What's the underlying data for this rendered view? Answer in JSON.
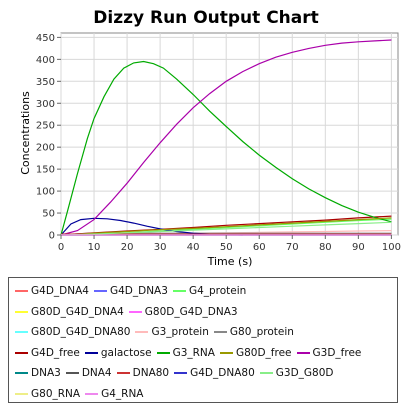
{
  "chart_data": {
    "type": "line",
    "title": "Dizzy Run Output Chart",
    "xlabel": "Time (s)",
    "ylabel": "Concentrations",
    "xlim": [
      0,
      102
    ],
    "ylim": [
      0,
      460
    ],
    "xticks": [
      "0",
      "10",
      "20",
      "30",
      "40",
      "50",
      "60",
      "70",
      "80",
      "90",
      "100"
    ],
    "yticks": [
      "0",
      "50",
      "100",
      "150",
      "200",
      "250",
      "300",
      "350",
      "400",
      "450"
    ],
    "grid": true,
    "legend_position": "bottom",
    "legend_rows": [
      [
        0,
        1,
        2
      ],
      [
        3,
        4
      ],
      [
        5,
        6,
        7
      ],
      [
        8,
        9,
        10,
        11,
        12
      ],
      [
        13,
        14,
        15,
        16,
        17
      ],
      [
        18,
        19
      ]
    ],
    "series": [
      {
        "name": "G4D_DNA4",
        "color": "#ff6666",
        "x": [
          0,
          100
        ],
        "y": [
          0,
          0
        ]
      },
      {
        "name": "G4D_DNA3",
        "color": "#6666ff",
        "x": [
          0,
          100
        ],
        "y": [
          0,
          0
        ]
      },
      {
        "name": "G4_protein",
        "color": "#66ff66",
        "x": [
          0,
          5,
          10,
          20,
          30,
          40,
          50,
          60,
          70,
          80,
          90,
          100
        ],
        "y": [
          0,
          1,
          2,
          5,
          9,
          13,
          17,
          21,
          25,
          29,
          33,
          36
        ]
      },
      {
        "name": "G80D_G4D_DNA4",
        "color": "#ffff33",
        "x": [
          0,
          100
        ],
        "y": [
          0,
          0
        ]
      },
      {
        "name": "G80D_G4D_DNA3",
        "color": "#ff66ff",
        "x": [
          0,
          100
        ],
        "y": [
          0,
          0
        ]
      },
      {
        "name": "G80D_G4D_DNA80",
        "color": "#66ffff",
        "x": [
          0,
          100
        ],
        "y": [
          0,
          0
        ]
      },
      {
        "name": "G3_protein",
        "color": "#ffbbbb",
        "x": [
          0,
          10,
          20,
          30,
          40,
          50,
          60,
          70,
          80,
          90,
          100
        ],
        "y": [
          0,
          1,
          2,
          3,
          4,
          5,
          6,
          7,
          8,
          9,
          10
        ]
      },
      {
        "name": "G80_protein",
        "color": "#888888",
        "x": [
          0,
          5,
          10,
          20,
          50,
          100
        ],
        "y": [
          0,
          3,
          4,
          4,
          4,
          4
        ]
      },
      {
        "name": "G4D_free",
        "color": "#aa0000",
        "x": [
          0,
          10,
          20,
          30,
          40,
          50,
          60,
          70,
          80,
          90,
          100
        ],
        "y": [
          0,
          5,
          9,
          13,
          17,
          22,
          26,
          30,
          34,
          39,
          43
        ]
      },
      {
        "name": "galactose",
        "color": "#000099",
        "x": [
          0,
          3,
          6,
          10,
          14,
          18,
          22,
          26,
          30,
          35,
          40,
          45,
          50,
          55
        ],
        "y": [
          0,
          25,
          35,
          38,
          37,
          33,
          27,
          20,
          14,
          8,
          4,
          2,
          1,
          0
        ]
      },
      {
        "name": "G3_RNA",
        "color": "#00aa00",
        "x": [
          0,
          2,
          5,
          8,
          10,
          13,
          16,
          19,
          22,
          25,
          28,
          31,
          35,
          40,
          45,
          50,
          55,
          60,
          65,
          70,
          75,
          80,
          85,
          90,
          95,
          100
        ],
        "y": [
          0,
          55,
          140,
          220,
          265,
          315,
          355,
          380,
          392,
          395,
          390,
          380,
          355,
          320,
          282,
          247,
          213,
          182,
          154,
          128,
          105,
          85,
          67,
          52,
          40,
          30
        ]
      },
      {
        "name": "G80D_free",
        "color": "#999900",
        "x": [
          0,
          10,
          20,
          30,
          40,
          50,
          60,
          70,
          80,
          90,
          100
        ],
        "y": [
          0,
          4,
          8,
          12,
          15,
          19,
          23,
          27,
          31,
          35,
          39
        ]
      },
      {
        "name": "G3D_free",
        "color": "#aa00aa",
        "x": [
          0,
          5,
          10,
          15,
          20,
          25,
          30,
          35,
          40,
          45,
          50,
          55,
          60,
          65,
          70,
          75,
          80,
          85,
          90,
          95,
          100
        ],
        "y": [
          0,
          10,
          35,
          75,
          118,
          165,
          210,
          252,
          290,
          322,
          350,
          372,
          390,
          405,
          416,
          425,
          432,
          437,
          440,
          442,
          444
        ]
      },
      {
        "name": "DNA3",
        "color": "#008888",
        "x": [
          0,
          100
        ],
        "y": [
          1,
          1
        ]
      },
      {
        "name": "DNA4",
        "color": "#555555",
        "x": [
          0,
          100
        ],
        "y": [
          1,
          1
        ]
      },
      {
        "name": "DNA80",
        "color": "#cc3333",
        "x": [
          0,
          100
        ],
        "y": [
          2,
          2
        ]
      },
      {
        "name": "G4D_DNA80",
        "color": "#3333cc",
        "x": [
          0,
          100
        ],
        "y": [
          0,
          0
        ]
      },
      {
        "name": "G3D_G80D",
        "color": "#88ee88",
        "x": [
          0,
          10,
          20,
          30,
          40,
          50,
          60,
          70,
          80,
          90,
          100
        ],
        "y": [
          0,
          2,
          5,
          8,
          11,
          14,
          17,
          20,
          23,
          26,
          29
        ]
      },
      {
        "name": "G80_RNA",
        "color": "#eeee88",
        "x": [
          0,
          100
        ],
        "y": [
          0,
          0
        ]
      },
      {
        "name": "G4_RNA",
        "color": "#ee88ee",
        "x": [
          0,
          100
        ],
        "y": [
          0,
          0
        ]
      }
    ]
  }
}
